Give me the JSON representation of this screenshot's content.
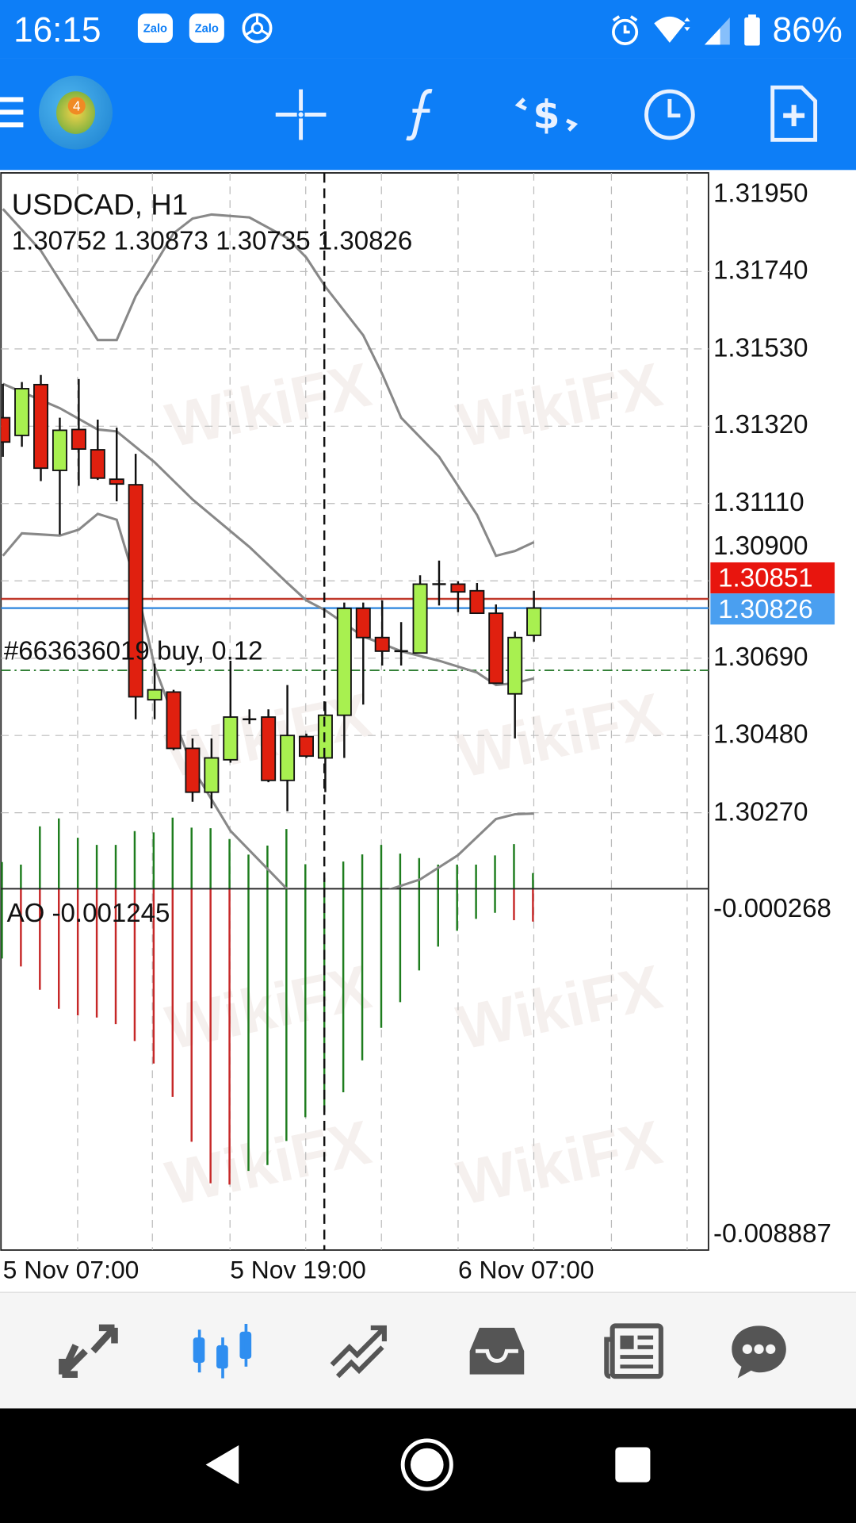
{
  "status_bar": {
    "time": "16:15",
    "notif_icons": [
      "zalo-icon",
      "zalo-icon",
      "chrome-icon"
    ],
    "notif_label": "Zalo",
    "battery": "86%",
    "icons": [
      "alarm-icon",
      "wifi-icon",
      "signal-icon",
      "battery-icon"
    ]
  },
  "toolbar": {
    "icons": [
      "menu-icon",
      "metatrader-logo",
      "crosshair-icon",
      "indicators-icon",
      "trade-icon",
      "timeframe-icon",
      "new-order-icon"
    ],
    "accent": "#0d7ef7",
    "logo_text": "4"
  },
  "chart": {
    "symbol": "USDCAD, H1",
    "ohlc": "1.30752 1.30873 1.30735 1.30826",
    "order_label": "#663636019 buy, 0.12",
    "price_labels": [
      "1.31950",
      "1.31740",
      "1.31530",
      "1.31320",
      "1.31110",
      "1.30900",
      "1.30690",
      "1.30480",
      "1.30270"
    ],
    "ask_label": "1.30851",
    "bid_label": "1.30826",
    "ao_label": "AO -0.001245",
    "ao_scale_labels": [
      "-0.000268",
      "-0.008887"
    ],
    "time_labels": [
      "5 Nov 07:00",
      "5 Nov 19:00",
      "6 Nov 07:00"
    ],
    "watermark": "WikiFX"
  },
  "chart_data": [
    {
      "type": "candlestick",
      "title": "USDCAD, H1",
      "ylim": [
        1.3018,
        1.3204
      ],
      "colors": {
        "up": "#a8f050",
        "down": "#e0200f",
        "bands": "#888888",
        "ask_line": "#c0392b",
        "bid_line": "#3d8fe0",
        "order_line": "#2e7d32"
      },
      "candles": [
        {
          "o": 1.31343,
          "h": 1.31435,
          "l": 1.31237,
          "c": 1.31277
        },
        {
          "o": 1.31295,
          "h": 1.3144,
          "l": 1.31264,
          "c": 1.31422
        },
        {
          "o": 1.31433,
          "h": 1.31459,
          "l": 1.31171,
          "c": 1.31206
        },
        {
          "o": 1.312,
          "h": 1.31343,
          "l": 1.31026,
          "c": 1.31309
        },
        {
          "o": 1.31311,
          "h": 1.31448,
          "l": 1.31158,
          "c": 1.31258
        },
        {
          "o": 1.31256,
          "h": 1.31338,
          "l": 1.31174,
          "c": 1.31179
        },
        {
          "o": 1.31176,
          "h": 1.31316,
          "l": 1.31116,
          "c": 1.31163
        },
        {
          "o": 1.31161,
          "h": 1.31245,
          "l": 1.30524,
          "c": 1.30585
        },
        {
          "o": 1.30577,
          "h": 1.30675,
          "l": 1.30524,
          "c": 1.30604
        },
        {
          "o": 1.30598,
          "h": 1.30604,
          "l": 1.3044,
          "c": 1.30445
        },
        {
          "o": 1.30445,
          "h": 1.30472,
          "l": 1.303,
          "c": 1.30326
        },
        {
          "o": 1.30326,
          "h": 1.30472,
          "l": 1.30282,
          "c": 1.30419
        },
        {
          "o": 1.30414,
          "h": 1.30683,
          "l": 1.30406,
          "c": 1.3053
        },
        {
          "o": 1.30524,
          "h": 1.30551,
          "l": 1.30511,
          "c": 1.30524
        },
        {
          "o": 1.3053,
          "h": 1.30551,
          "l": 1.30353,
          "c": 1.30358
        },
        {
          "o": 1.30358,
          "h": 1.30617,
          "l": 1.30274,
          "c": 1.3048
        },
        {
          "o": 1.30477,
          "h": 1.30485,
          "l": 1.30419,
          "c": 1.30424
        },
        {
          "o": 1.30419,
          "h": 1.30572,
          "l": 1.30326,
          "c": 1.30535
        },
        {
          "o": 1.30535,
          "h": 1.30841,
          "l": 1.30419,
          "c": 1.30825
        },
        {
          "o": 1.30825,
          "h": 1.30841,
          "l": 1.30564,
          "c": 1.30746
        },
        {
          "o": 1.30746,
          "h": 1.30847,
          "l": 1.3067,
          "c": 1.30709
        },
        {
          "o": 1.30709,
          "h": 1.30788,
          "l": 1.3067,
          "c": 1.30709
        },
        {
          "o": 1.30704,
          "h": 1.30915,
          "l": 1.30704,
          "c": 1.30891
        },
        {
          "o": 1.30891,
          "h": 1.30955,
          "l": 1.30833,
          "c": 1.30891
        },
        {
          "o": 1.30891,
          "h": 1.30899,
          "l": 1.30815,
          "c": 1.3087
        },
        {
          "o": 1.30873,
          "h": 1.30894,
          "l": 1.3081,
          "c": 1.30812
        },
        {
          "o": 1.30812,
          "h": 1.30836,
          "l": 1.3062,
          "c": 1.30622
        },
        {
          "o": 1.30593,
          "h": 1.30762,
          "l": 1.30472,
          "c": 1.30746
        },
        {
          "o": 1.30752,
          "h": 1.30873,
          "l": 1.30735,
          "c": 1.30826
        }
      ],
      "bands": {
        "upper": [
          [
            0,
            1.3191
          ],
          [
            2,
            1.31797
          ],
          [
            5,
            1.31554
          ],
          [
            6,
            1.31554
          ],
          [
            7,
            1.31673
          ],
          [
            9,
            1.31844
          ],
          [
            10,
            1.31884
          ],
          [
            11,
            1.31895
          ],
          [
            13,
            1.31887
          ],
          [
            15,
            1.31831
          ],
          [
            16,
            1.31778
          ],
          [
            17,
            1.31699
          ],
          [
            19,
            1.31567
          ],
          [
            20,
            1.31462
          ],
          [
            21,
            1.31343
          ],
          [
            23,
            1.31237
          ],
          [
            25,
            1.31079
          ],
          [
            26,
            1.30968
          ],
          [
            27,
            1.30981
          ],
          [
            28,
            1.31005
          ]
        ],
        "middle": [
          [
            0,
            1.31435
          ],
          [
            3,
            1.31369
          ],
          [
            5,
            1.31311
          ],
          [
            6,
            1.31306
          ],
          [
            8,
            1.31222
          ],
          [
            10,
            1.31121
          ],
          [
            13,
            1.30992
          ],
          [
            15,
            1.30894
          ],
          [
            16,
            1.30847
          ],
          [
            17,
            1.3082
          ],
          [
            19,
            1.30749
          ],
          [
            21,
            1.30709
          ],
          [
            23,
            1.30683
          ],
          [
            25,
            1.30651
          ],
          [
            26,
            1.30617
          ],
          [
            27,
            1.30622
          ],
          [
            28,
            1.30635
          ]
        ],
        "lower": [
          [
            0,
            1.30968
          ],
          [
            1,
            1.31029
          ],
          [
            3,
            1.31023
          ],
          [
            4,
            1.31039
          ],
          [
            5,
            1.31082
          ],
          [
            6,
            1.31066
          ],
          [
            7,
            1.30894
          ],
          [
            8,
            1.30667
          ],
          [
            10,
            1.30392
          ],
          [
            12,
            1.30221
          ],
          [
            14,
            1.30115
          ],
          [
            15,
            1.30062
          ],
          [
            17,
            1.3001
          ],
          [
            19,
            1.30023
          ],
          [
            20,
            1.30055
          ],
          [
            22,
            1.30089
          ],
          [
            24,
            1.30155
          ],
          [
            26,
            1.30253
          ],
          [
            27,
            1.30266
          ],
          [
            28,
            1.30268
          ]
        ]
      },
      "ask": 1.30851,
      "bid": 1.30826,
      "order_price": 1.30657,
      "crosshair_index": 17
    },
    {
      "type": "histogram",
      "title": "AO -0.001245",
      "ylim": [
        -0.009325,
        0.000247
      ],
      "colors": {
        "up": "#1e7d1e",
        "down": "#c62828"
      },
      "bars": [
        {
          "high": 0.000954,
          "low": -0.001603,
          "c": "up"
        },
        {
          "high": 0.000885,
          "low": -0.001812,
          "c": "down"
        },
        {
          "high": 0.001898,
          "low": -0.002429,
          "c": "down"
        },
        {
          "high": 0.002109,
          "low": -0.002933,
          "c": "down"
        },
        {
          "high": 0.001597,
          "low": -0.003108,
          "c": "down"
        },
        {
          "high": 0.001409,
          "low": -0.003165,
          "c": "down"
        },
        {
          "high": 0.001409,
          "low": -0.00334,
          "c": "down"
        },
        {
          "high": 0.001772,
          "low": -0.003788,
          "c": "down"
        },
        {
          "high": 0.001739,
          "low": -0.004382,
          "c": "down"
        },
        {
          "high": 0.00213,
          "low": -0.005267,
          "c": "down"
        },
        {
          "high": 0.001865,
          "low": -0.006456,
          "c": "down"
        },
        {
          "high": 0.001849,
          "low": -0.007557,
          "c": "down"
        },
        {
          "high": 0.001564,
          "low": -0.007591,
          "c": "down"
        },
        {
          "high": 0.00115,
          "low": -0.007228,
          "c": "up"
        },
        {
          "high": 0.001389,
          "low": -0.007073,
          "c": "up"
        },
        {
          "high": 0.001829,
          "low": -0.006435,
          "c": "up"
        },
        {
          "high": 0.000897,
          "low": -0.005805,
          "c": "up"
        },
        {
          "high": 0.000535,
          "low": -0.005666,
          "c": "up"
        },
        {
          "high": 0.000967,
          "low": -0.005146,
          "c": "up"
        },
        {
          "high": 0.001157,
          "low": -0.0043,
          "c": "up"
        },
        {
          "high": 0.001409,
          "low": -0.003438,
          "c": "up"
        },
        {
          "high": 0.001178,
          "low": -0.002758,
          "c": "up"
        },
        {
          "high": 0.00106,
          "low": -0.001917,
          "c": "up"
        },
        {
          "high": 0.000885,
          "low": -0.001287,
          "c": "up"
        },
        {
          "high": 0.000885,
          "low": -0.000867,
          "c": "up"
        },
        {
          "high": 0.000885,
          "low": -0.000551,
          "c": "up"
        },
        {
          "high": 0.001129,
          "low": -0.000391,
          "c": "up"
        },
        {
          "high": 0.00143,
          "low": -0.000587,
          "c": "down"
        },
        {
          "high": 0.000661,
          "low": -0.000623,
          "c": "down"
        }
      ]
    }
  ],
  "bottom_nav": {
    "items": [
      "quotes-icon",
      "chart-icon",
      "trade-icon",
      "history-icon",
      "news-icon",
      "messages-icon"
    ],
    "active": 1,
    "active_color": "#2f8ef0"
  },
  "system_nav": {
    "items": [
      "back-icon",
      "home-icon",
      "recents-icon"
    ]
  }
}
